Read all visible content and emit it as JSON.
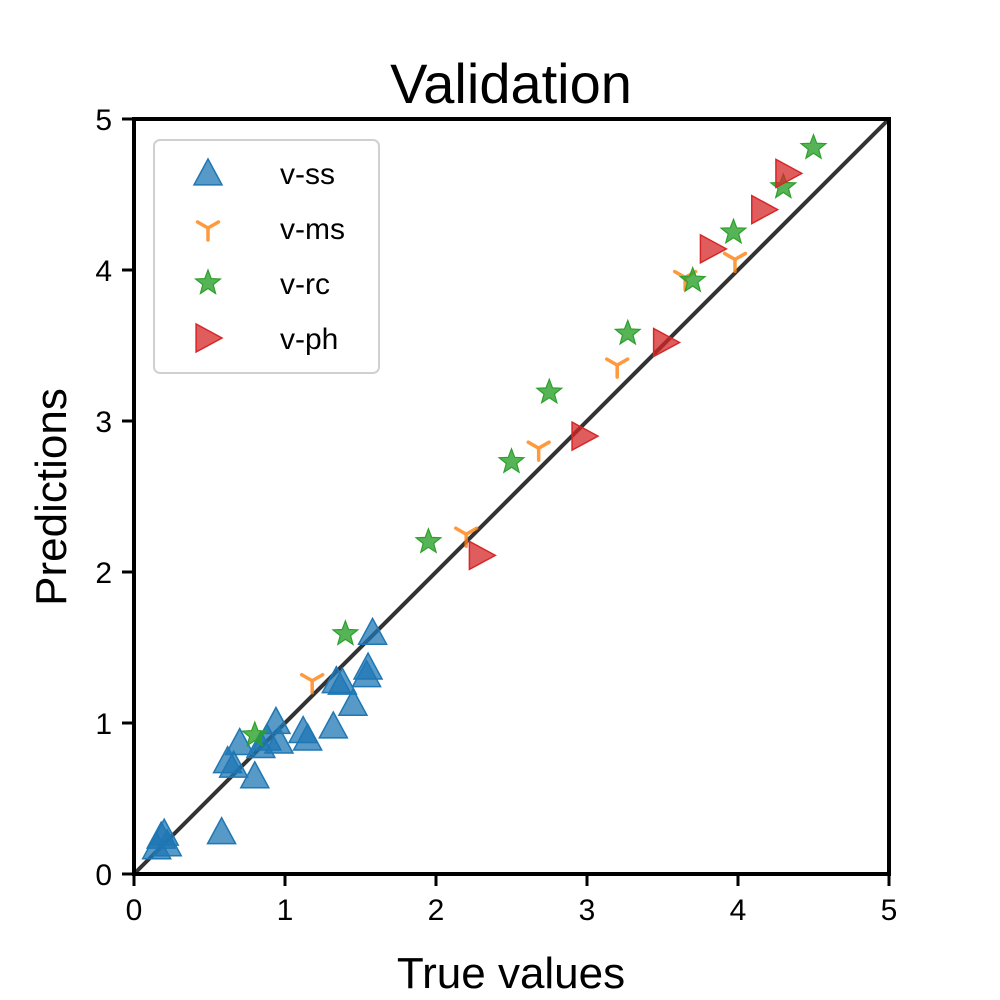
{
  "chart_data": {
    "type": "scatter",
    "title": "Validation",
    "xlabel": "True values",
    "ylabel": "Predictions",
    "xlim": [
      0,
      5
    ],
    "ylim": [
      0,
      5
    ],
    "xticks": [
      "0",
      "1",
      "2",
      "3",
      "4",
      "5"
    ],
    "yticks": [
      "0",
      "1",
      "2",
      "3",
      "4",
      "5"
    ],
    "grid": false,
    "legend_position": "top-left",
    "reference_line": {
      "x": [
        0,
        5
      ],
      "y": [
        0,
        5
      ],
      "color": "#333333"
    },
    "series": [
      {
        "name": "v-ss",
        "marker": "triangle-up",
        "color": "#1f77b4",
        "x": [
          0.15,
          0.18,
          0.2,
          0.22,
          0.58,
          0.62,
          0.66,
          0.7,
          0.8,
          0.84,
          0.88,
          0.94,
          0.96,
          1.12,
          1.15,
          1.32,
          1.34,
          1.38,
          1.45,
          1.54,
          1.55,
          1.58
        ],
        "y": [
          0.18,
          0.25,
          0.27,
          0.2,
          0.28,
          0.75,
          0.72,
          0.87,
          0.65,
          0.85,
          0.9,
          1.01,
          0.88,
          0.95,
          0.9,
          0.98,
          1.28,
          1.27,
          1.13,
          1.32,
          1.37,
          1.6
        ]
      },
      {
        "name": "v-ms",
        "marker": "tri-down",
        "color": "#ff7f0e",
        "x": [
          1.18,
          2.2,
          2.68,
          3.2,
          3.65,
          3.98
        ],
        "y": [
          1.28,
          2.25,
          2.82,
          3.37,
          3.95,
          4.07
        ]
      },
      {
        "name": "v-rc",
        "marker": "star",
        "color": "#2ca02c",
        "x": [
          0.8,
          1.4,
          1.95,
          2.5,
          2.75,
          3.27,
          3.7,
          3.97,
          4.3,
          4.5
        ],
        "y": [
          0.92,
          1.59,
          2.2,
          2.73,
          3.19,
          3.58,
          3.93,
          4.25,
          4.55,
          4.81
        ]
      },
      {
        "name": "v-ph",
        "marker": "triangle-right",
        "color": "#d62728",
        "x": [
          2.3,
          2.98,
          3.52,
          3.83,
          4.17,
          4.33
        ],
        "y": [
          2.11,
          2.9,
          3.52,
          4.14,
          4.4,
          4.64
        ]
      }
    ]
  }
}
